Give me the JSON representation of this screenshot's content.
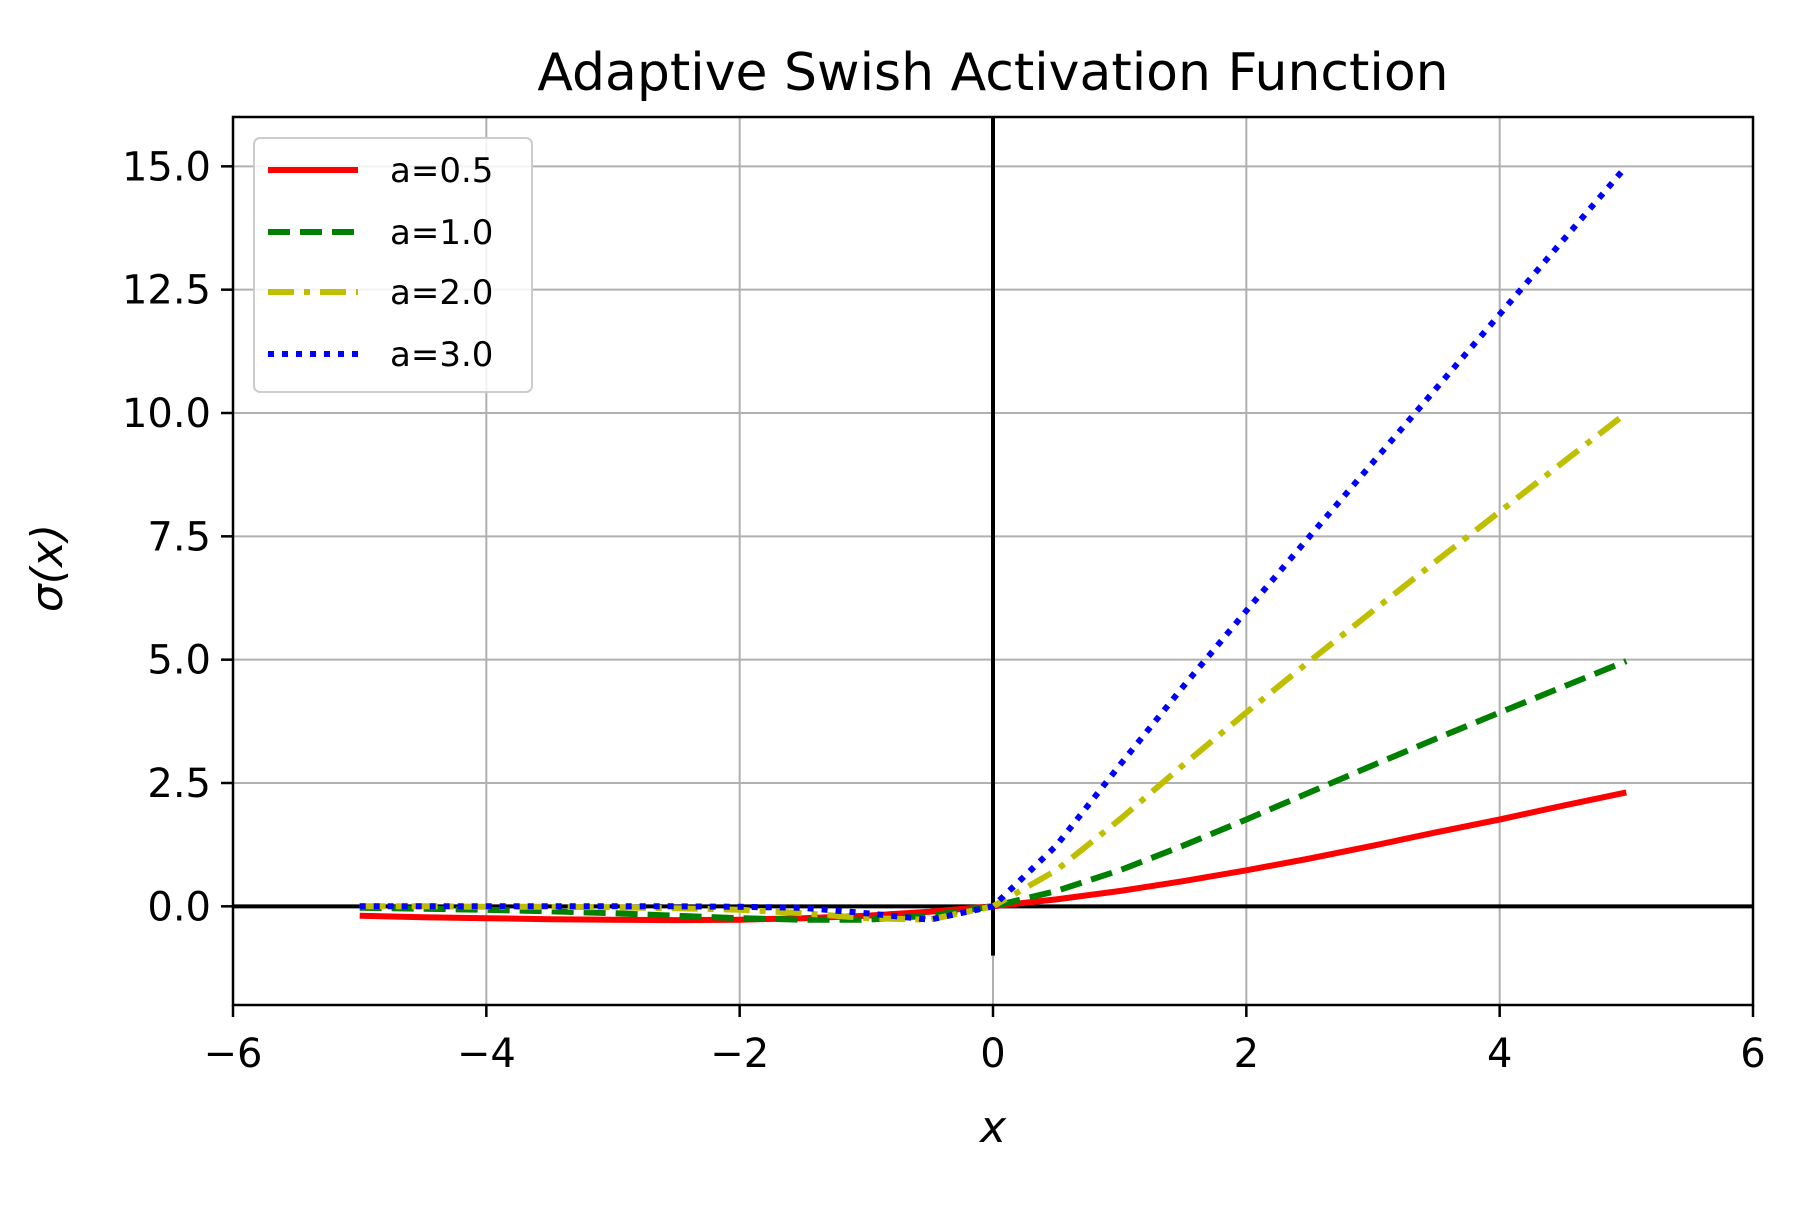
{
  "chart_data": {
    "type": "line",
    "title": "Adaptive Swish Activation Function",
    "xlabel": "x",
    "ylabel": "σ(x)",
    "xlim": [
      -6,
      6
    ],
    "ylim": [
      -2,
      16
    ],
    "xticks": [
      -6,
      -4,
      -2,
      0,
      2,
      4,
      6
    ],
    "xtick_labels": [
      "−6",
      "−4",
      "−2",
      "0",
      "2",
      "4",
      "6"
    ],
    "yticks": [
      0,
      2.5,
      5,
      7.5,
      10,
      12.5,
      15
    ],
    "ytick_labels": [
      "0.0",
      "2.5",
      "5.0",
      "7.5",
      "10.0",
      "12.5",
      "15.0"
    ],
    "grid": true,
    "legend_position": "top-left",
    "reference_lines": [
      "y=0",
      "x=0"
    ],
    "x": [
      -5.0,
      -4.5,
      -4.0,
      -3.5,
      -3.0,
      -2.5,
      -2.0,
      -1.5,
      -1.0,
      -0.5,
      0.0,
      0.5,
      1.0,
      1.5,
      2.0,
      2.5,
      3.0,
      3.5,
      4.0,
      4.5,
      5.0
    ],
    "series": [
      {
        "name": "a=0.5",
        "color": "#ff0000",
        "style": "solid",
        "values": [
          -0.19,
          -0.22,
          -0.24,
          -0.26,
          -0.27,
          -0.28,
          -0.27,
          -0.24,
          -0.19,
          -0.11,
          0.0,
          0.14,
          0.31,
          0.51,
          0.73,
          0.97,
          1.23,
          1.5,
          1.76,
          2.04,
          2.31
        ]
      },
      {
        "name": "a=1.0",
        "color": "#008000",
        "style": "dashed",
        "values": [
          -0.03,
          -0.05,
          -0.07,
          -0.1,
          -0.14,
          -0.19,
          -0.24,
          -0.27,
          -0.27,
          -0.19,
          0.0,
          0.31,
          0.73,
          1.23,
          1.76,
          2.31,
          2.86,
          3.4,
          3.93,
          4.45,
          4.97
        ]
      },
      {
        "name": "a=2.0",
        "color": "#bfbf00",
        "style": "dashdot",
        "values": [
          0.0,
          0.0,
          -0.01,
          -0.01,
          -0.02,
          -0.04,
          -0.07,
          -0.14,
          -0.24,
          -0.27,
          0.0,
          0.73,
          1.76,
          2.86,
          3.93,
          4.97,
          5.99,
          7.0,
          8.0,
          9.0,
          10.0
        ]
      },
      {
        "name": "a=3.0",
        "color": "#0000ff",
        "style": "dotted",
        "values": [
          0.0,
          0.0,
          0.0,
          0.0,
          0.0,
          0.0,
          -0.01,
          -0.03,
          -0.14,
          -0.27,
          0.0,
          1.23,
          2.86,
          4.45,
          5.99,
          7.5,
          9.0,
          10.5,
          12.0,
          13.5,
          15.0
        ]
      }
    ]
  }
}
